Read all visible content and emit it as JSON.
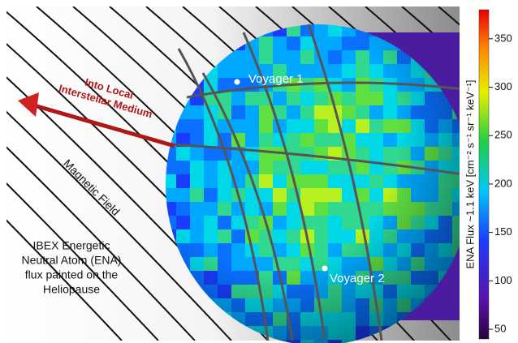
{
  "labels": {
    "voyager1": "Voyager 1",
    "voyager2": "Voyager 2",
    "arrow": [
      "Into Local",
      "Interstellar Medium"
    ],
    "field": "Magnetic Field",
    "caption": [
      "IBEX Energetic",
      "Neutral Atom (ENA)",
      "flux painted on the",
      "Heliopause"
    ]
  },
  "colorbar": {
    "label": "ENA Flux ~1.1 keV [cm⁻² s⁻¹ sr⁻¹ keV⁻¹]",
    "lim": [
      40,
      380
    ],
    "ticks": [
      50,
      100,
      150,
      200,
      250,
      300,
      350
    ]
  }
}
